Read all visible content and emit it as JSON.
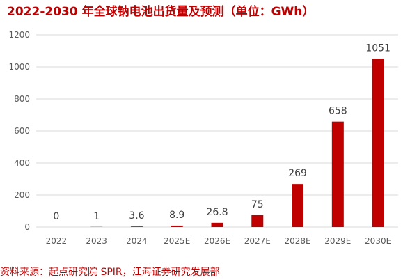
{
  "title": "2022-2030 年全球钠电池出货量及预测（单位：GWh）",
  "source": "资料来源：起点研究院 SPIR，江海证券研究发展部",
  "colors": {
    "bar": "#c00000",
    "title": "#c00000",
    "grid": "#d9d9d9"
  },
  "chart_data": {
    "type": "bar",
    "categories": [
      "2022",
      "2023",
      "2024",
      "2025E",
      "2026E",
      "2027E",
      "2028E",
      "2029E",
      "2030E"
    ],
    "values": [
      0,
      1,
      3.6,
      8.9,
      26.8,
      75,
      269,
      658,
      1051
    ],
    "value_labels": [
      "0",
      "1",
      "3.6",
      "8.9",
      "26.8",
      "75",
      "269",
      "658",
      "1051"
    ],
    "ylim": [
      0,
      1200
    ],
    "yticks": [
      0,
      200,
      400,
      600,
      800,
      1000,
      1200
    ],
    "grid": true,
    "legend": "none"
  }
}
